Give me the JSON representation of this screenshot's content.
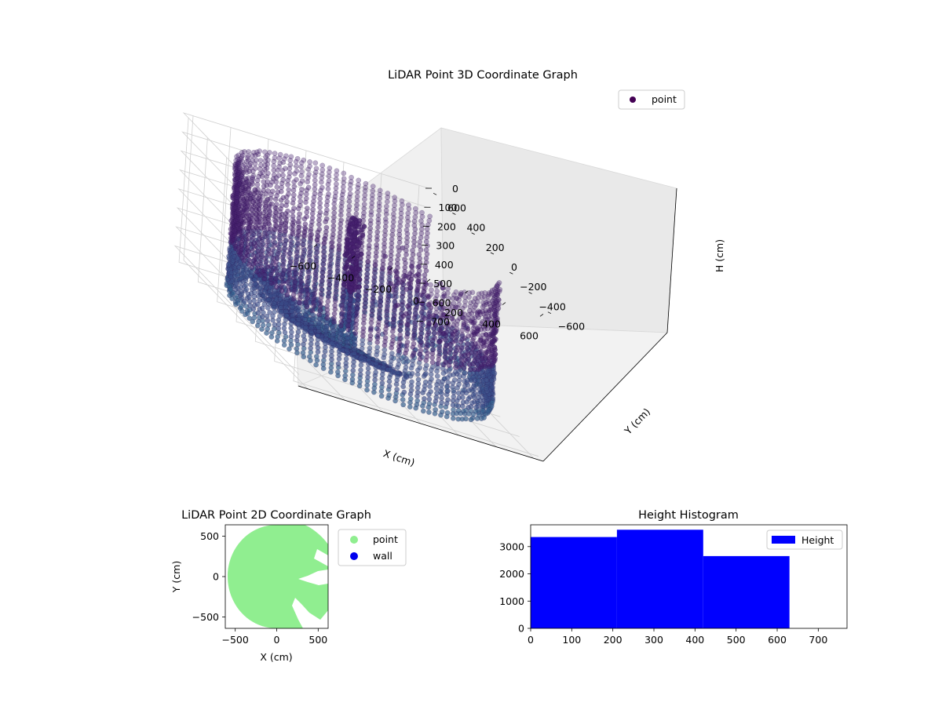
{
  "chart_data": [
    {
      "type": "scatter",
      "title": "LiDAR Point 3D Coordinate Graph",
      "xlabel": "X (cm)",
      "ylabel": "Y (cm)",
      "zlabel": "H (cm)",
      "xlim": [
        -650,
        650
      ],
      "ylim": [
        -650,
        650
      ],
      "zlim": [
        0,
        760
      ],
      "z_inverted": true,
      "xticks": [
        -600,
        -400,
        -200,
        0,
        200,
        400,
        600
      ],
      "yticks": [
        -600,
        -400,
        -200,
        0,
        200,
        400,
        600
      ],
      "zticks": [
        0,
        100,
        200,
        300,
        400,
        500,
        600,
        700
      ],
      "grid": true,
      "legend": {
        "position": "top-right",
        "entries": [
          "point"
        ]
      },
      "colors": {
        "point": "#440154"
      },
      "series": [
        {
          "name": "point",
          "shape": "ring-wall",
          "radius": 620,
          "height_range": [
            40,
            720
          ],
          "color": "#46206e"
        }
      ]
    },
    {
      "type": "scatter",
      "title": "LiDAR Point 2D Coordinate Graph",
      "xlabel": "X (cm)",
      "ylabel": "Y (cm)",
      "xlim": [
        -620,
        620
      ],
      "ylim": [
        -640,
        640
      ],
      "xticks": [
        -500,
        0,
        500
      ],
      "yticks": [
        -500,
        0,
        500
      ],
      "legend": {
        "position": "right",
        "entries": [
          "point",
          "wall"
        ]
      },
      "colors": {
        "point": "#90ee90",
        "wall": "#0000ee"
      },
      "series": [
        {
          "name": "point",
          "color": "#90ee90"
        },
        {
          "name": "wall",
          "color": "#0000ee"
        }
      ]
    },
    {
      "type": "bar",
      "title": "Height Histogram",
      "xlabel": "",
      "ylabel": "",
      "xlim": [
        0,
        770
      ],
      "ylim": [
        0,
        3800
      ],
      "xticks": [
        0,
        100,
        200,
        300,
        400,
        500,
        600,
        700
      ],
      "yticks": [
        0,
        1000,
        2000,
        3000
      ],
      "legend": {
        "position": "top-right",
        "entries": [
          "Height"
        ]
      },
      "colors": {
        "bar": "#0000ff"
      },
      "bins": [
        {
          "x0": 0,
          "x1": 210,
          "count": 3350
        },
        {
          "x0": 210,
          "x1": 420,
          "count": 3620
        },
        {
          "x0": 420,
          "x1": 630,
          "count": 2650
        }
      ]
    }
  ]
}
